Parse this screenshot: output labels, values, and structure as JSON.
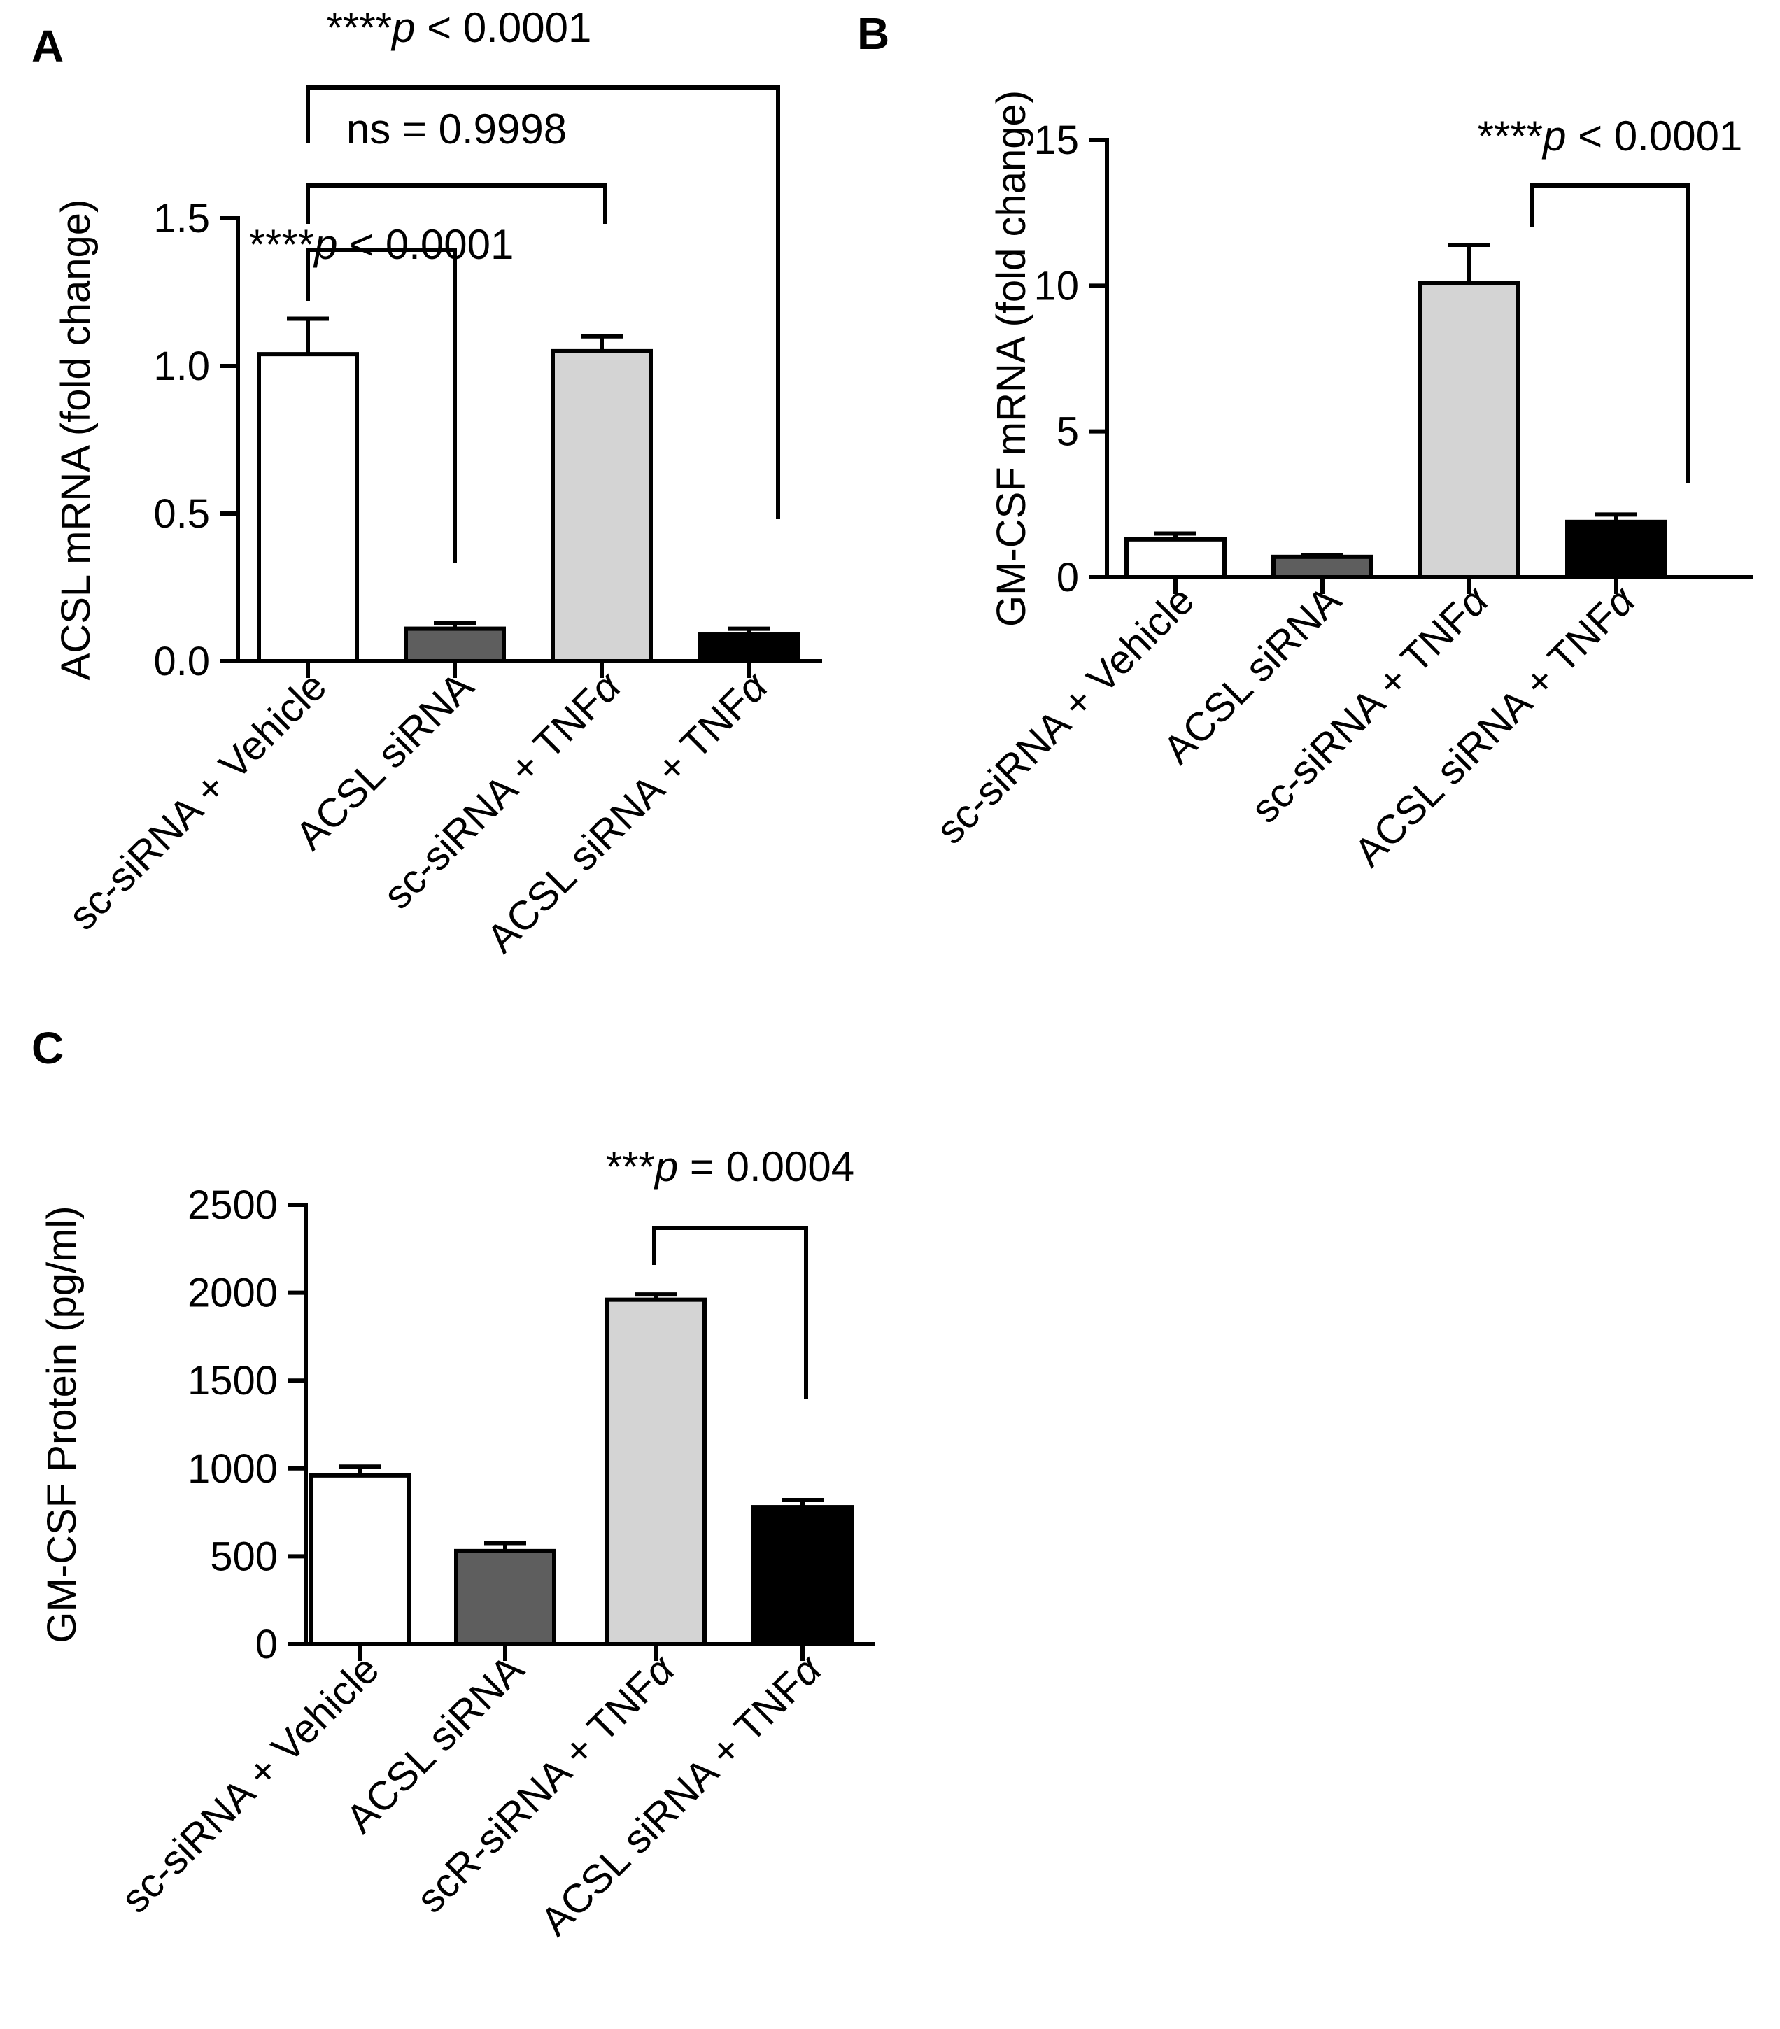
{
  "chart_data": [
    {
      "panel": "A",
      "type": "bar",
      "title": "",
      "xlabel": "",
      "ylabel": "ACSL mRNA (fold change)",
      "ylim": [
        0,
        1.5
      ],
      "yticks": [
        0.0,
        0.5,
        1.0,
        1.5
      ],
      "ytick_labels": [
        "0.0",
        "0.5",
        "1.0",
        "1.5"
      ],
      "categories": [
        "sc-siRNA + Vehicle",
        "ACSL siRNA",
        "sc-siRNA + TNFα",
        "ACSL siRNA + TNFα"
      ],
      "values": [
        1.04,
        0.11,
        1.05,
        0.09
      ],
      "errors": [
        0.12,
        0.02,
        0.05,
        0.02
      ],
      "bar_colors": [
        "#ffffff",
        "#5e5e5e",
        "#d4d4d4",
        "#000000"
      ],
      "comparisons": [
        {
          "from": 0,
          "to": 1,
          "label": "****p < 0.0001"
        },
        {
          "from": 0,
          "to": 2,
          "label": "ns = 0.9998"
        },
        {
          "from": 0,
          "to": 3,
          "label": "****p < 0.0001"
        }
      ]
    },
    {
      "panel": "B",
      "type": "bar",
      "title": "",
      "xlabel": "",
      "ylabel": "GM-CSF mRNA (fold change)",
      "ylim": [
        0,
        15
      ],
      "yticks": [
        0,
        5,
        10,
        15
      ],
      "ytick_labels": [
        "0",
        "5",
        "10",
        "15"
      ],
      "categories": [
        "sc-siRNA + Vehicle",
        "ACSL siRNA",
        "sc-siRNA + TNFα",
        "ACSL siRNA + TNFα"
      ],
      "values": [
        1.3,
        0.7,
        10.1,
        1.9
      ],
      "errors": [
        0.2,
        0.05,
        1.3,
        0.25
      ],
      "bar_colors": [
        "#ffffff",
        "#5e5e5e",
        "#d4d4d4",
        "#000000"
      ],
      "comparisons": [
        {
          "from": 2,
          "to": 3,
          "label": "****p < 0.0001"
        }
      ]
    },
    {
      "panel": "C",
      "type": "bar",
      "title": "",
      "xlabel": "",
      "ylabel": "GM-CSF Protein (pg/ml)",
      "ylim": [
        0,
        2500
      ],
      "yticks": [
        0,
        500,
        1000,
        1500,
        2000,
        2500
      ],
      "ytick_labels": [
        "0",
        "500",
        "1000",
        "1500",
        "2000",
        "2500"
      ],
      "categories": [
        "sc-siRNA + Vehicle",
        "ACSL siRNA",
        "scR-siRNA + TNFα",
        "ACSL siRNA + TNFα"
      ],
      "values": [
        960,
        530,
        1960,
        780
      ],
      "errors": [
        50,
        45,
        30,
        40
      ],
      "bar_colors": [
        "#ffffff",
        "#5e5e5e",
        "#d4d4d4",
        "#000000"
      ],
      "comparisons": [
        {
          "from": 2,
          "to": 3,
          "label": "***p = 0.0004"
        }
      ]
    }
  ]
}
